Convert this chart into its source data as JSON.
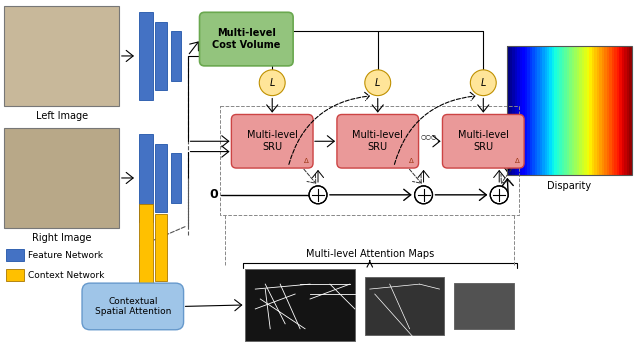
{
  "fig_width": 6.4,
  "fig_height": 3.49,
  "dpi": 100,
  "bg_color": "#ffffff",
  "left_label": "Left Image",
  "right_label": "Right Image",
  "disparity_label": "Disparity",
  "feat_color": "#4472C4",
  "feat_edge": "#2255AA",
  "context_color": "#FFC000",
  "context_edge": "#AA7700",
  "cost_vol_color": "#93C47D",
  "cost_vol_edge": "#6AA84F",
  "cost_vol_text": "Multi-level\nCost Volume",
  "sru_color": "#EA9999",
  "sru_edge": "#CC4444",
  "sru_text": "Multi-level\nSRU",
  "L_color": "#FFE599",
  "L_edge": "#BF9000",
  "csa_color": "#9FC5E8",
  "csa_edge": "#6699CC",
  "csa_text": "Contextual\nSpatial Attention",
  "attn_map_label": "Multi-level Attention Maps",
  "legend_feat_label": "Feature Network",
  "legend_ctx_label": "Context Network"
}
